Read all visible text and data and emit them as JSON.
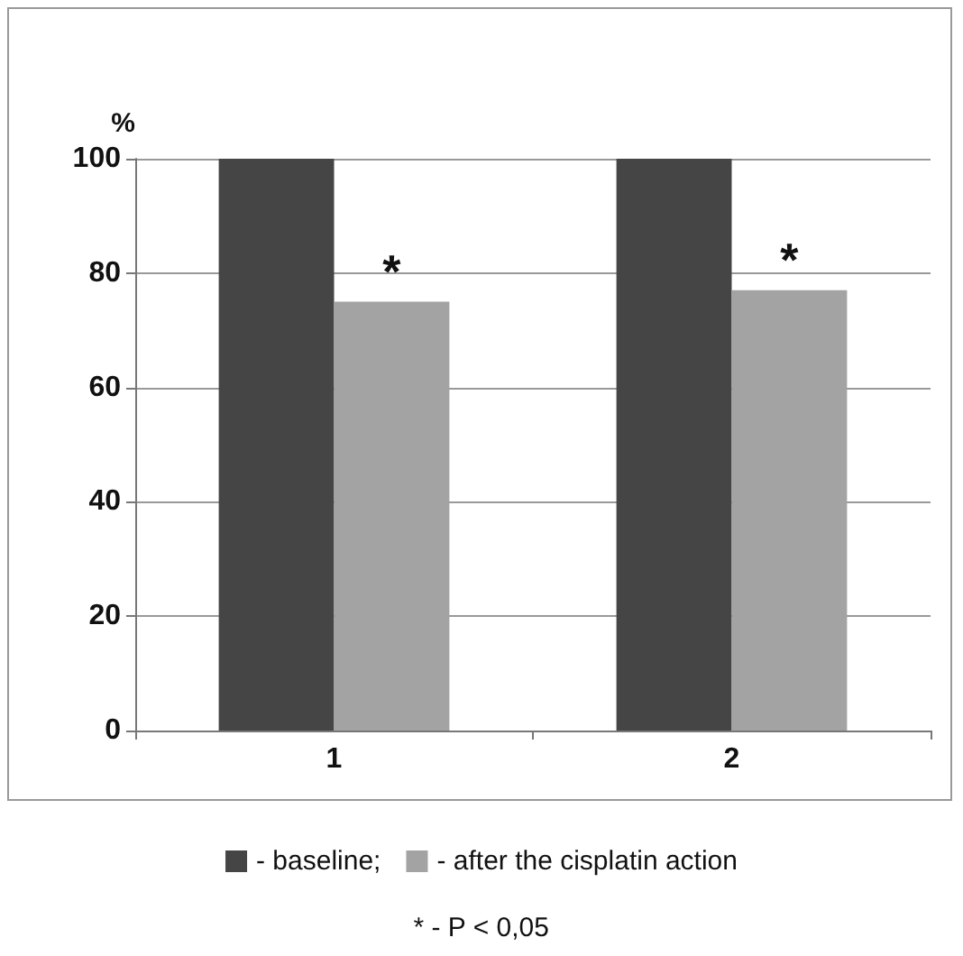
{
  "chart_data": {
    "type": "bar",
    "ylabel": "%",
    "categories": [
      "1",
      "2"
    ],
    "series": [
      {
        "name": "- baseline;",
        "color": "#454545",
        "values": [
          100,
          100
        ]
      },
      {
        "name": "- after the cisplatin action",
        "color": "#a3a3a3",
        "values": [
          75,
          77
        ]
      }
    ],
    "ylim": [
      0,
      100
    ],
    "yticks": [
      0,
      20,
      40,
      60,
      80,
      100
    ],
    "grid": "y",
    "legend": "bottom",
    "annotations": [
      {
        "text": "*",
        "x": "1",
        "y": 75
      },
      {
        "text": "*",
        "x": "2",
        "y": 77
      },
      "* - P < 0,05"
    ]
  }
}
